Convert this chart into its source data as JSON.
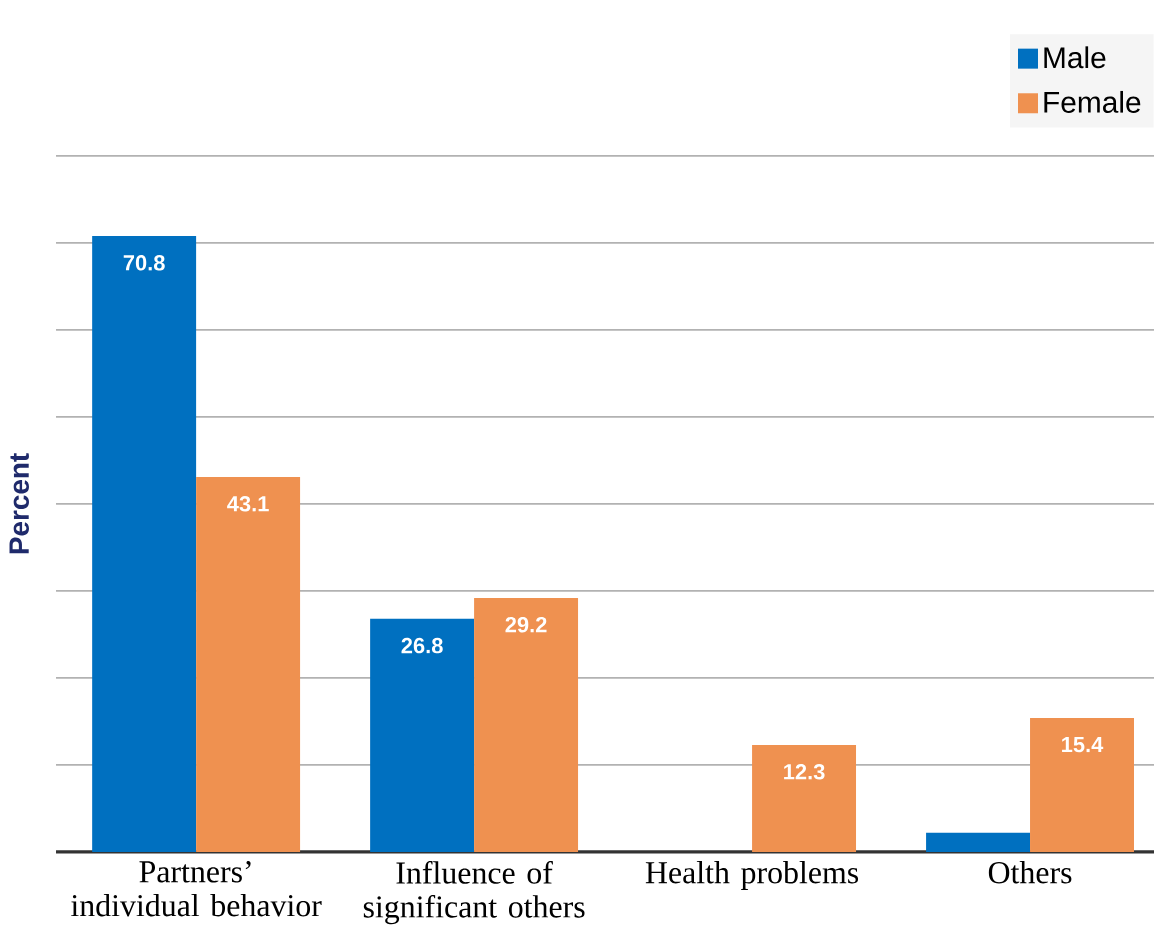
{
  "chart_data": {
    "type": "bar",
    "ylabel": "Percent",
    "categories": [
      "Partners’ individual behavior",
      "Influence of significant others",
      "Health problems",
      "Others"
    ],
    "series": [
      {
        "name": "Male",
        "color": "#0070c0",
        "values": [
          70.8,
          26.8,
          null,
          2.2
        ],
        "value_labels": [
          "70.8",
          "26.8",
          null,
          null
        ]
      },
      {
        "name": "Female",
        "color": "#ef9150",
        "values": [
          43.1,
          29.2,
          12.3,
          15.4
        ],
        "value_labels": [
          "43.1",
          "29.2",
          "12.3",
          "15.4"
        ]
      }
    ],
    "ylim": [
      0,
      80
    ],
    "yticks": [
      {
        "value": 0,
        "label": null
      },
      {
        "value": 10,
        "label": null
      },
      {
        "value": 20,
        "label": null
      },
      {
        "value": 30,
        "label": null
      },
      {
        "value": 40,
        "label": null
      },
      {
        "value": 50,
        "label": null
      },
      {
        "value": 60,
        "label": null
      },
      {
        "value": 70,
        "label": null
      },
      {
        "value": 80,
        "label": null
      }
    ],
    "tick_labels": "x",
    "grid": "y",
    "legend": "top right"
  }
}
